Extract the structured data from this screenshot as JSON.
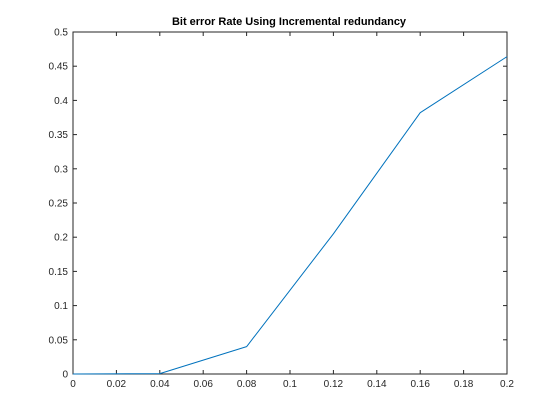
{
  "chart_data": {
    "type": "line",
    "title": "Bit error Rate Using Incremental redundancy",
    "xlabel": "",
    "ylabel": "",
    "xlim": [
      0,
      0.2
    ],
    "ylim": [
      0,
      0.5
    ],
    "x_ticks": [
      0,
      0.02,
      0.04,
      0.06,
      0.08,
      0.1,
      0.12,
      0.14,
      0.16,
      0.18,
      0.2
    ],
    "x_tick_labels": [
      "0",
      "0.02",
      "0.04",
      "0.06",
      "0.08",
      "0.1",
      "0.12",
      "0.14",
      "0.16",
      "0.18",
      "0.2"
    ],
    "y_ticks": [
      0,
      0.05,
      0.1,
      0.15,
      0.2,
      0.25,
      0.3,
      0.35,
      0.4,
      0.45,
      0.5
    ],
    "y_tick_labels": [
      "0",
      "0.05",
      "0.1",
      "0.15",
      "0.2",
      "0.25",
      "0.3",
      "0.35",
      "0.4",
      "0.45",
      "0.5"
    ],
    "grid": false,
    "series": [
      {
        "color": "#0072bd",
        "x": [
          0,
          0.04,
          0.08,
          0.12,
          0.16,
          0.2
        ],
        "y": [
          0,
          0.0005,
          0.04,
          0.205,
          0.382,
          0.464
        ]
      }
    ]
  }
}
